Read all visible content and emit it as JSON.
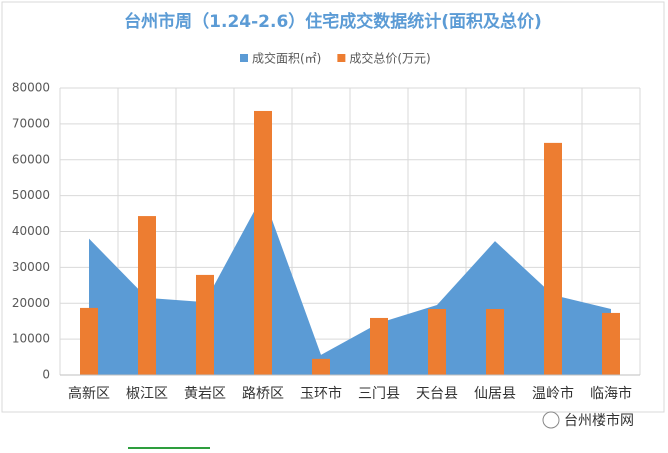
{
  "chart_data": {
    "type": "combo",
    "title": "台州市周（1.24-2.6）住宅成交数据统计(面积及总价)",
    "categories": [
      "高新区",
      "椒江区",
      "黄岩区",
      "路桥区",
      "玉环市",
      "三门县",
      "天台县",
      "仙居县",
      "温岭市",
      "临海市"
    ],
    "series": [
      {
        "name": "成交面积(㎡)",
        "type": "area",
        "color": "#5b9bd5",
        "values": [
          38000,
          21500,
          20300,
          50200,
          5600,
          14500,
          19500,
          37300,
          22300,
          18400
        ]
      },
      {
        "name": "成交总价(万元)",
        "type": "bar",
        "color": "#ed7d31",
        "values": [
          18700,
          44300,
          27900,
          73600,
          4500,
          15900,
          18400,
          18400,
          64700,
          17300
        ]
      }
    ],
    "ylim": [
      0,
      80000
    ],
    "yticks": [
      0,
      10000,
      20000,
      30000,
      40000,
      50000,
      60000,
      70000,
      80000
    ],
    "grid": true,
    "legend": "top",
    "watermark": "台州楼市网"
  }
}
